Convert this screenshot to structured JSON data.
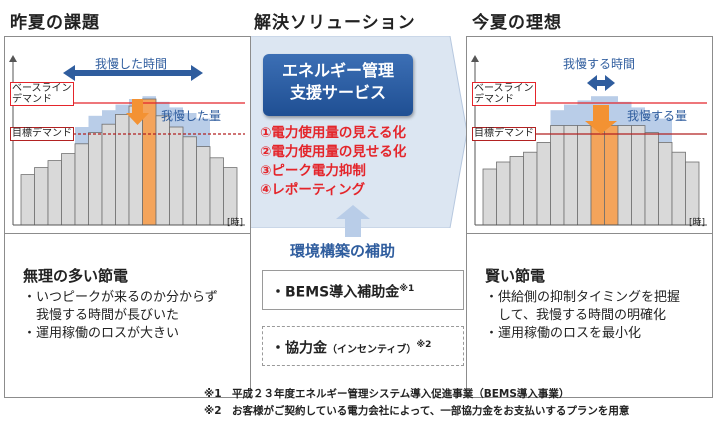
{
  "sections": {
    "left_title": "昨夏の課題",
    "center_title": "解決ソリューション",
    "right_title": "今夏の理想"
  },
  "left_chart": {
    "arrow_label": "我慢した時間",
    "baseline_label_1": "ベースライン",
    "baseline_label_2": "デマンド",
    "target_label": "目標デマンド",
    "endured_label": "我慢した量",
    "time_label": "[時]",
    "chart_data": {
      "type": "bar",
      "values": [
        36,
        41,
        46,
        51,
        58,
        66,
        72,
        79,
        85,
        90,
        78,
        70,
        63,
        56,
        48,
        41
      ]
    }
  },
  "right_chart": {
    "arrow_label": "我慢する時間",
    "baseline_label_1": "ベースライン",
    "baseline_label_2": "デマンド",
    "target_label": "目標デマンド",
    "endure_label": "我慢する量",
    "time_label": "[時]",
    "chart_data": {
      "type": "bar",
      "values": [
        40,
        45,
        49,
        52,
        59,
        71,
        71,
        71,
        71,
        71,
        71,
        71,
        66,
        59,
        52,
        45
      ]
    }
  },
  "left_bottom": {
    "title": "無理の多い節電",
    "bullets": [
      "・いつピークが来るのか分からず",
      "　我慢する時間が長びいた",
      "・運用稼働のロスが大きい"
    ]
  },
  "right_bottom": {
    "title": "賢い節電",
    "bullets": [
      "・供給側の抑制タイミングを把握",
      "　して、我慢する時間の明確化",
      "・運用稼働のロスを最小化"
    ]
  },
  "center": {
    "service_line1": "エネルギー管理",
    "service_line2": "支援サービス",
    "items": [
      "①電力使用量の見える化",
      "②電力使用量の見せる化",
      "③ピーク電力抑制",
      "④レポーティング"
    ],
    "subsidy_title": "環境構築の補助",
    "bems_label": "・BEMS導入補助金",
    "bems_sup": "※1",
    "coop_label": "・協力金",
    "coop_paren": "（インセンティブ）",
    "coop_sup": "※2"
  },
  "notes": [
    "※1　平成２３年度エネルギー管理システム導入促進事業（BEMS導入事業）",
    "※2　お客様がご契約している電力会社によって、一部協力金をお支払いするプランを用意"
  ],
  "colors": {
    "baseline": "#e4252b",
    "target": "#b22222",
    "bar_fill": "#d9d9d9",
    "bar_stroke": "#6f6f6f",
    "peak_bar": "#f4a45b",
    "endured_area": "#b9cde8",
    "accent_blue": "#2f5d9e",
    "center_bg": "#dce6f2"
  }
}
